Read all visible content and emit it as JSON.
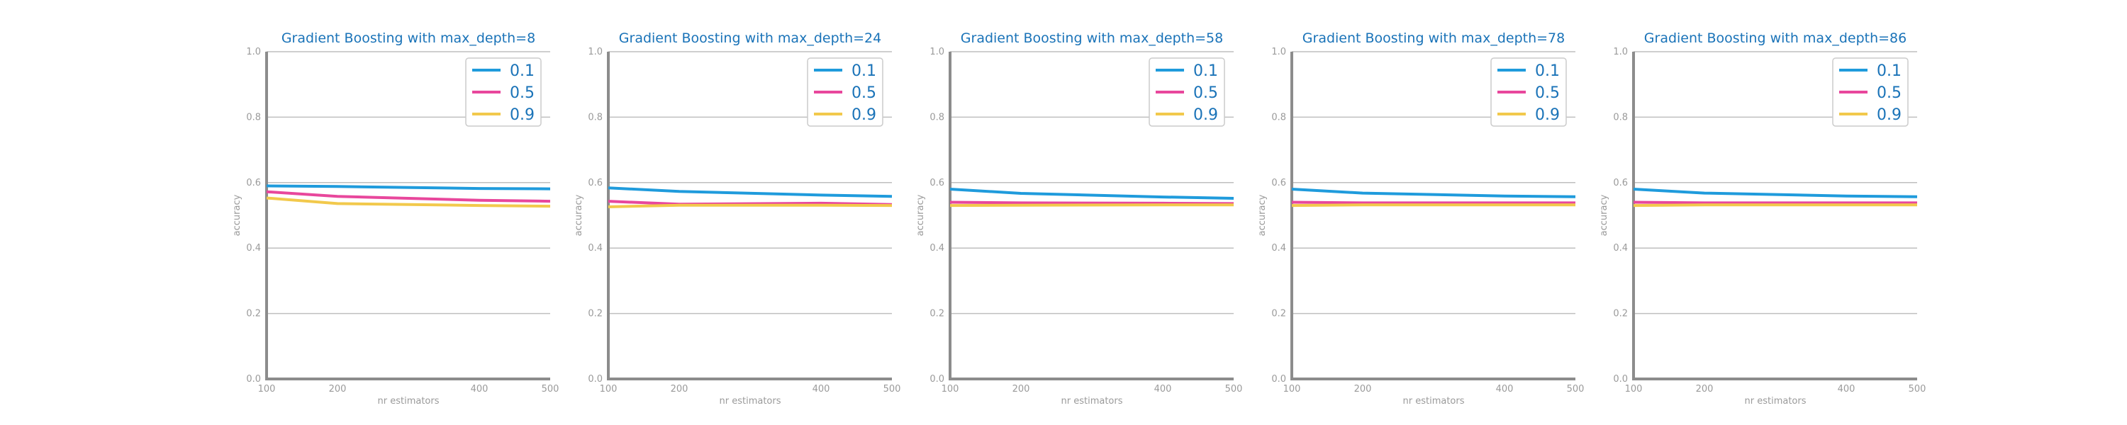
{
  "colors": {
    "series": [
      "#1f9bdc",
      "#e8479c",
      "#f2c94c"
    ],
    "title": "#1a73b8",
    "grid": "#bfbfbf",
    "axis": "#8c8c8c",
    "tick_text": "#9a9a9a",
    "legend_text": "#1a73b8"
  },
  "chart_data": [
    {
      "type": "line",
      "title": "Gradient Boosting with max_depth=8",
      "xlabel": "nr estimators",
      "ylabel": "accuracy",
      "x": [
        100,
        200,
        400,
        500
      ],
      "xlim": [
        100,
        500
      ],
      "ylim": [
        0,
        1
      ],
      "yticks": [
        "0.0",
        "0.2",
        "0.4",
        "0.6",
        "0.8",
        "1.0"
      ],
      "xticks": [
        "100",
        "200",
        "400",
        "500"
      ],
      "grid": "horizontal",
      "legend_position": "top-right",
      "series": [
        {
          "name": "0.1",
          "values": [
            0.59,
            0.588,
            0.582,
            0.581
          ]
        },
        {
          "name": "0.5",
          "values": [
            0.572,
            0.558,
            0.546,
            0.543
          ]
        },
        {
          "name": "0.9",
          "values": [
            0.553,
            0.536,
            0.53,
            0.528
          ]
        }
      ]
    },
    {
      "type": "line",
      "title": "Gradient Boosting with max_depth=24",
      "xlabel": "nr estimators",
      "ylabel": "accuracy",
      "x": [
        100,
        200,
        400,
        500
      ],
      "xlim": [
        100,
        500
      ],
      "ylim": [
        0,
        1
      ],
      "yticks": [
        "0.0",
        "0.2",
        "0.4",
        "0.6",
        "0.8",
        "1.0"
      ],
      "xticks": [
        "100",
        "200",
        "400",
        "500"
      ],
      "grid": "horizontal",
      "legend_position": "top-right",
      "series": [
        {
          "name": "0.1",
          "values": [
            0.584,
            0.573,
            0.562,
            0.558
          ]
        },
        {
          "name": "0.5",
          "values": [
            0.543,
            0.534,
            0.537,
            0.533
          ]
        },
        {
          "name": "0.9",
          "values": [
            0.526,
            0.531,
            0.531,
            0.53
          ]
        }
      ]
    },
    {
      "type": "line",
      "title": "Gradient Boosting with max_depth=58",
      "xlabel": "nr estimators",
      "ylabel": "accuracy",
      "x": [
        100,
        200,
        400,
        500
      ],
      "xlim": [
        100,
        500
      ],
      "ylim": [
        0,
        1
      ],
      "yticks": [
        "0.0",
        "0.2",
        "0.4",
        "0.6",
        "0.8",
        "1.0"
      ],
      "xticks": [
        "100",
        "200",
        "400",
        "500"
      ],
      "grid": "horizontal",
      "legend_position": "top-right",
      "series": [
        {
          "name": "0.1",
          "values": [
            0.58,
            0.567,
            0.556,
            0.552
          ]
        },
        {
          "name": "0.5",
          "values": [
            0.54,
            0.538,
            0.537,
            0.536
          ]
        },
        {
          "name": "0.9",
          "values": [
            0.53,
            0.531,
            0.532,
            0.532
          ]
        }
      ]
    },
    {
      "type": "line",
      "title": "Gradient Boosting with max_depth=78",
      "xlabel": "nr estimators",
      "ylabel": "accuracy",
      "x": [
        100,
        200,
        400,
        500
      ],
      "xlim": [
        100,
        500
      ],
      "ylim": [
        0,
        1
      ],
      "yticks": [
        "0.0",
        "0.2",
        "0.4",
        "0.6",
        "0.8",
        "1.0"
      ],
      "xticks": [
        "100",
        "200",
        "400",
        "500"
      ],
      "grid": "horizontal",
      "legend_position": "top-right",
      "series": [
        {
          "name": "0.1",
          "values": [
            0.58,
            0.568,
            0.559,
            0.557
          ]
        },
        {
          "name": "0.5",
          "values": [
            0.54,
            0.538,
            0.538,
            0.538
          ]
        },
        {
          "name": "0.9",
          "values": [
            0.53,
            0.532,
            0.532,
            0.532
          ]
        }
      ]
    },
    {
      "type": "line",
      "title": "Gradient Boosting with max_depth=86",
      "xlabel": "nr estimators",
      "ylabel": "accuracy",
      "x": [
        100,
        200,
        400,
        500
      ],
      "xlim": [
        100,
        500
      ],
      "ylim": [
        0,
        1
      ],
      "yticks": [
        "0.0",
        "0.2",
        "0.4",
        "0.6",
        "0.8",
        "1.0"
      ],
      "xticks": [
        "100",
        "200",
        "400",
        "500"
      ],
      "grid": "horizontal",
      "legend_position": "top-right",
      "series": [
        {
          "name": "0.1",
          "values": [
            0.58,
            0.568,
            0.559,
            0.557
          ]
        },
        {
          "name": "0.5",
          "values": [
            0.54,
            0.538,
            0.538,
            0.538
          ]
        },
        {
          "name": "0.9",
          "values": [
            0.53,
            0.532,
            0.532,
            0.532
          ]
        }
      ]
    }
  ]
}
